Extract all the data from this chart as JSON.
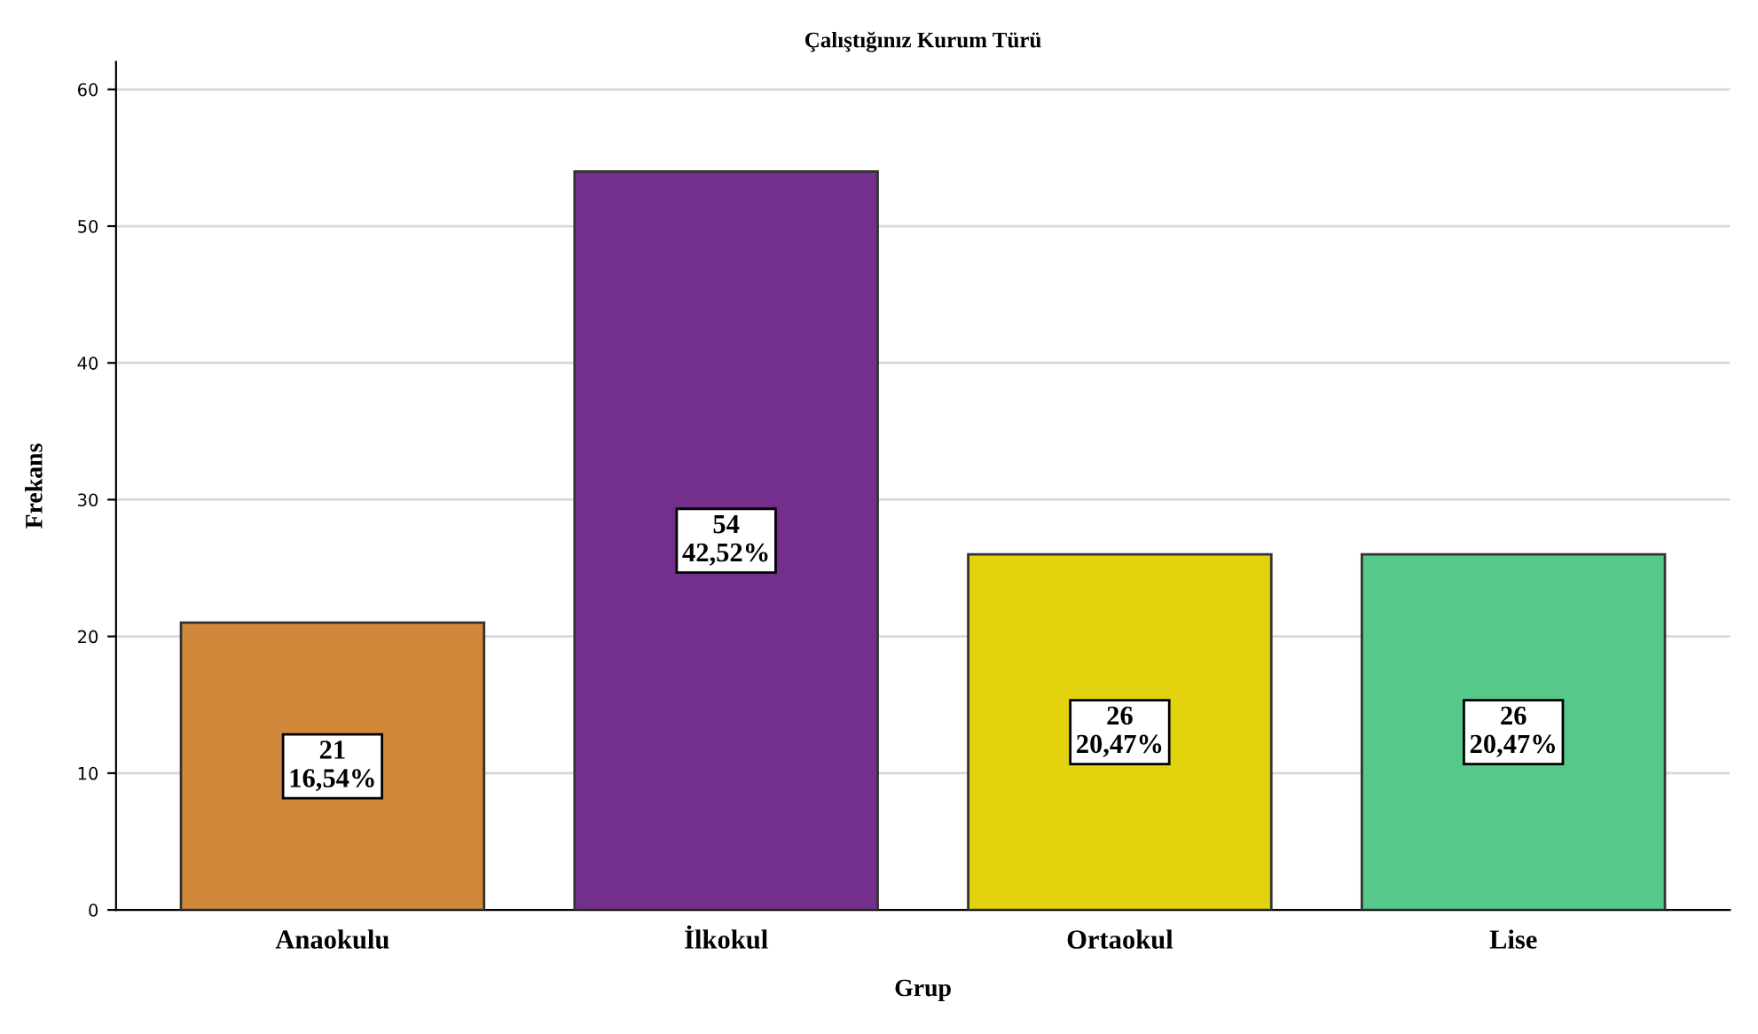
{
  "chart_data": {
    "type": "bar",
    "title": "Çalıştığınız Kurum Türü",
    "xlabel": "Grup",
    "ylabel": "Frekans",
    "categories": [
      "Anaokulu",
      "İlkokul",
      "Ortaokul",
      "Lise"
    ],
    "values": [
      21,
      54,
      26,
      26
    ],
    "colors": [
      "#d2883b",
      "#742f8c",
      "#e3d30f",
      "#55c88a"
    ],
    "value_labels": [
      "21\n16,54%",
      "54\n42,52%",
      "26\n20,47%",
      "26\n20,47%"
    ],
    "ylim": [
      0,
      62
    ],
    "yticks": [
      0,
      10,
      20,
      30,
      40,
      50,
      60
    ],
    "grid": "y"
  }
}
